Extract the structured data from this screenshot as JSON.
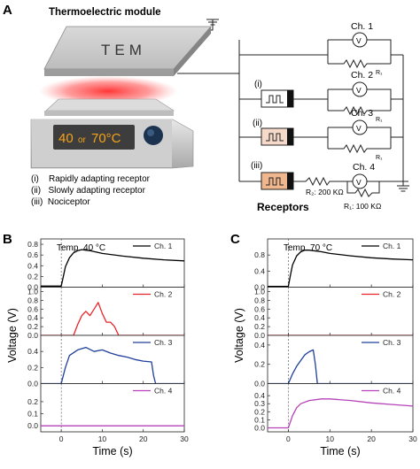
{
  "panel_a": {
    "letter": "A",
    "module_title": "Thermoelectric module",
    "plate_label": "TEM",
    "display_temp": "40",
    "display_or": "or",
    "display_temp2": "70°C",
    "receptor_list": [
      "(i)    Rapidly adapting receptor",
      "(ii)   Slowly adapting receptor",
      "(iii)  Nociceptor"
    ],
    "receptors_title": "Receptors",
    "circuit": {
      "channels": [
        "Ch. 1",
        "Ch. 2",
        "Ch. 3",
        "Ch. 4"
      ],
      "row_tags": [
        "(i)",
        "(ii)",
        "(iii)"
      ],
      "meter_symbol": "V",
      "r1": "R₁",
      "r2_label": "R₂: 200 KΩ",
      "r1_label": "R₁: 100 KΩ"
    },
    "colors": {
      "heat_glow": "#ff3b3b",
      "display_bg": "#3d3d3d",
      "display_text": "#f4a21a",
      "knob": "#1c3350"
    }
  },
  "panel_b": {
    "letter": "B",
    "annotation": "Temp. 40 °C"
  },
  "panel_c": {
    "letter": "C",
    "annotation": "Temp. 70 °C"
  },
  "chart_data": [
    {
      "type": "line",
      "panel": "B",
      "xlabel": "Time (s)",
      "ylabel": "Voltage (V)",
      "xlim": [
        -5,
        30
      ],
      "xticks": [
        0,
        10,
        20,
        30
      ],
      "stimulus_onset_x": 0,
      "series": [
        {
          "name": "Ch. 1",
          "color": "#000000",
          "ylim": [
            0,
            0.9
          ],
          "yticks": [
            "0.0",
            "0.2",
            "0.4",
            "0.6",
            "0.8"
          ],
          "x": [
            -5,
            0,
            0.5,
            1,
            2,
            3,
            4,
            5,
            7,
            10,
            15,
            20,
            25,
            30
          ],
          "y": [
            0.02,
            0.02,
            0.2,
            0.38,
            0.55,
            0.64,
            0.68,
            0.7,
            0.68,
            0.63,
            0.58,
            0.54,
            0.51,
            0.49
          ]
        },
        {
          "name": "Ch. 2",
          "color": "#e8242a",
          "ylim": [
            0,
            1.1
          ],
          "yticks": [
            "0.0",
            "0.2",
            "0.4",
            "0.6",
            "0.8",
            "1.0"
          ],
          "x": [
            -5,
            3,
            4,
            5,
            6,
            7,
            8,
            9,
            10,
            11,
            12,
            13,
            14,
            30
          ],
          "y": [
            0.0,
            0.0,
            0.25,
            0.45,
            0.55,
            0.45,
            0.6,
            0.75,
            0.5,
            0.3,
            0.3,
            0.2,
            0.0,
            0.0
          ]
        },
        {
          "name": "Ch. 3",
          "color": "#1f3f9b",
          "ylim": [
            0,
            0.6
          ],
          "yticks": [
            "0.0",
            "0.2",
            "0.4"
          ],
          "x": [
            -5,
            0,
            1,
            2,
            4,
            6,
            8,
            10,
            12,
            14,
            16,
            18,
            20,
            22,
            22.5,
            23,
            30
          ],
          "y": [
            0.0,
            0.0,
            0.2,
            0.35,
            0.42,
            0.45,
            0.4,
            0.42,
            0.38,
            0.35,
            0.33,
            0.3,
            0.28,
            0.27,
            0.1,
            0.0,
            0.0
          ]
        },
        {
          "name": "Ch. 4",
          "color": "#b542b8",
          "ylim": [
            -0.05,
            0.35
          ],
          "yticks": [
            "0.0",
            "0.1",
            "0.2"
          ],
          "x": [
            -5,
            0,
            5,
            10,
            15,
            20,
            25,
            30
          ],
          "y": [
            0.0,
            0.0,
            0.0,
            0.0,
            0.0,
            0.0,
            0.0,
            0.0
          ]
        }
      ]
    },
    {
      "type": "line",
      "panel": "C",
      "xlabel": "Time (s)",
      "ylabel": "Voltage (V)",
      "xlim": [
        -5,
        30
      ],
      "xticks": [
        0,
        10,
        20,
        30
      ],
      "stimulus_onset_x": 0,
      "series": [
        {
          "name": "Ch. 1",
          "color": "#000000",
          "ylim": [
            0,
            1.2
          ],
          "yticks": [
            "0.0",
            "0.4",
            "0.8"
          ],
          "x": [
            -5,
            0,
            0.5,
            1,
            2,
            3,
            4,
            5,
            8,
            10,
            15,
            20,
            25,
            30
          ],
          "y": [
            0.02,
            0.02,
            0.3,
            0.55,
            0.78,
            0.88,
            0.92,
            0.92,
            0.88,
            0.84,
            0.78,
            0.73,
            0.7,
            0.68
          ]
        },
        {
          "name": "Ch. 2",
          "color": "#e8242a",
          "ylim": [
            0,
            1.1
          ],
          "yticks": [
            "0.0",
            "0.2",
            "0.4",
            "0.6",
            "0.8",
            "1.0"
          ],
          "x": [
            -5,
            0,
            10,
            20,
            30
          ],
          "y": [
            0.0,
            0.0,
            0.0,
            0.0,
            0.0
          ]
        },
        {
          "name": "Ch. 3",
          "color": "#1f3f9b",
          "ylim": [
            0,
            0.5
          ],
          "yticks": [
            "0.0",
            "0.2",
            "0.4"
          ],
          "x": [
            -5,
            0,
            1,
            2,
            3,
            4,
            5,
            6,
            6.5,
            7,
            30
          ],
          "y": [
            0.0,
            0.0,
            0.1,
            0.18,
            0.24,
            0.3,
            0.33,
            0.35,
            0.2,
            0.0,
            0.0
          ]
        },
        {
          "name": "Ch. 4",
          "color": "#b542b8",
          "ylim": [
            -0.05,
            0.55
          ],
          "yticks": [
            "0.0",
            "0.1",
            "0.2",
            "0.3",
            "0.4"
          ],
          "x": [
            -5,
            0,
            1,
            2,
            3,
            5,
            8,
            10,
            15,
            20,
            25,
            30
          ],
          "y": [
            0.0,
            0.0,
            0.15,
            0.25,
            0.3,
            0.34,
            0.36,
            0.36,
            0.34,
            0.31,
            0.29,
            0.27
          ]
        }
      ]
    }
  ]
}
